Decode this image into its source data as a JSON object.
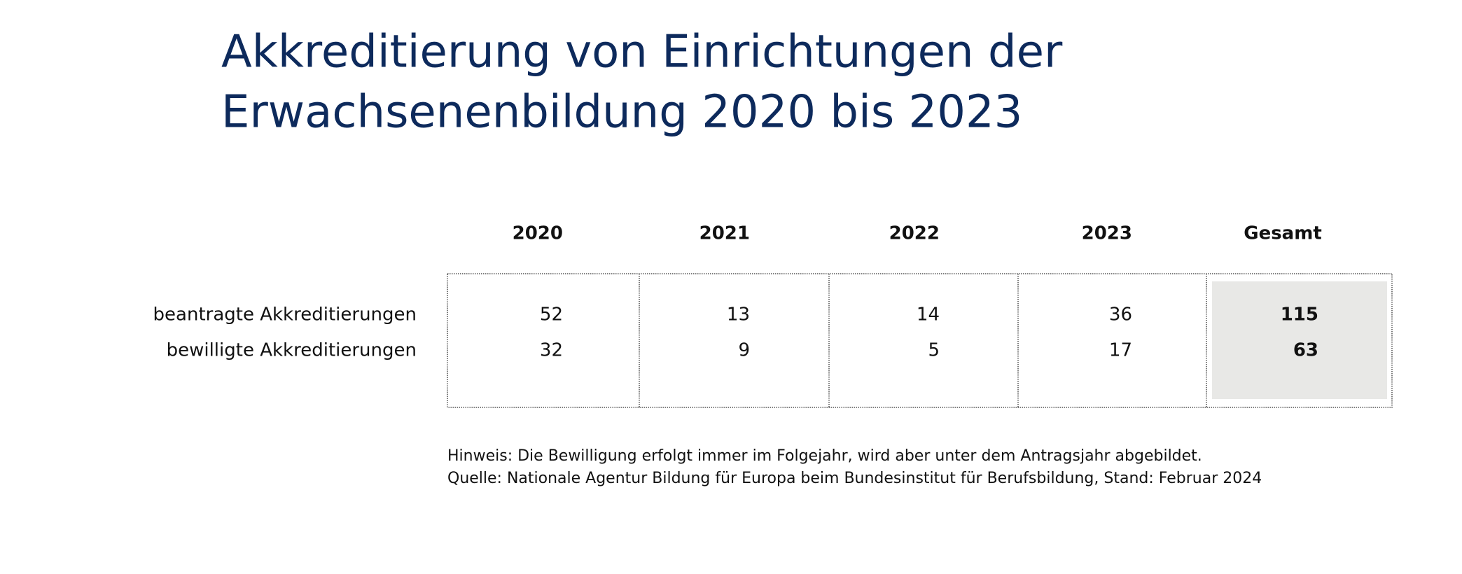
{
  "header": {
    "title": [
      "Akkreditierung von Einrichtungen der",
      "Erwachsenenbildung 2020 bis 2023"
    ]
  },
  "table": {
    "columns": [
      "2020",
      "2021",
      "2022",
      "2023",
      "Gesamt"
    ],
    "rows": [
      {
        "label": "beantragte Akkreditierungen",
        "values": [
          52,
          13,
          14,
          36,
          115
        ]
      },
      {
        "label": "bewilligte Akkreditierungen",
        "values": [
          32,
          9,
          5,
          17,
          63
        ]
      }
    ]
  },
  "notes": [
    "Hinweis: Die Bewilligung erfolgt immer im Folgejahr, wird aber unter dem Antragsjahr abgebildet.",
    "Quelle: Nationale Agentur Bildung für Europa beim Bundesinstitut für Berufsbildung, Stand: Februar 2024"
  ]
}
